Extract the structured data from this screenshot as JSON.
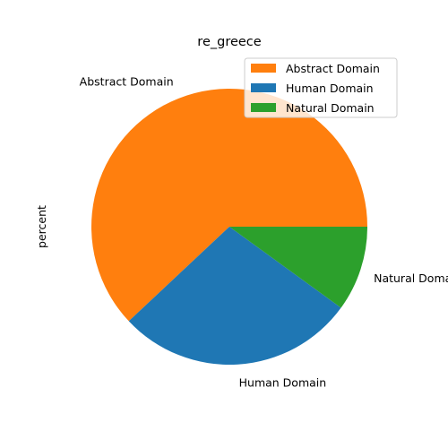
{
  "chart_data": {
    "type": "pie",
    "title": "re_greece",
    "ylabel": "percent",
    "slices": [
      {
        "label": "Abstract Domain",
        "value": 62,
        "color": "#ff7f0e"
      },
      {
        "label": "Human Domain",
        "value": 28,
        "color": "#1f77b4"
      },
      {
        "label": "Natural Domain",
        "value": 10,
        "color": "#2ca02c"
      }
    ],
    "start_angle_deg": 0,
    "direction": "counterclockwise",
    "legend": {
      "placement": "top-right",
      "entries": [
        "Abstract Domain",
        "Human Domain",
        "Natural Domain"
      ]
    }
  }
}
